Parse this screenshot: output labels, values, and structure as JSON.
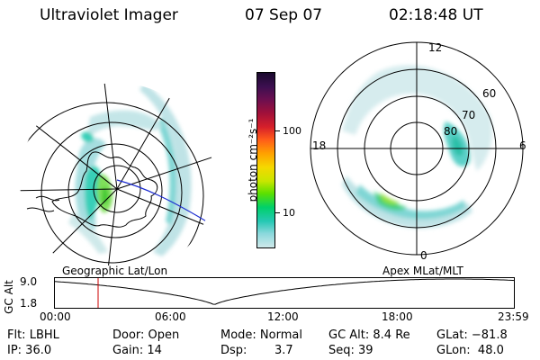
{
  "header": {
    "title": "Ultraviolet Imager",
    "date": "07 Sep 07",
    "time": "02:18:48 UT"
  },
  "left_panel": {
    "caption": "Geographic Lat/Lon"
  },
  "right_panel": {
    "caption": "Apex MLat/MLT",
    "mlt_labels": {
      "top": "12",
      "bottom": "0",
      "left": "18",
      "right": "6"
    },
    "lat_labels": [
      "60",
      "70",
      "80"
    ]
  },
  "colorbar": {
    "unit_label": "photon cm⁻²s⁻¹",
    "tick_labels": [
      "100",
      "10"
    ],
    "colors": [
      "#1a0a2e",
      "#3d0f50",
      "#6a0f50",
      "#a0103a",
      "#d61f2a",
      "#ff5a1a",
      "#ffa000",
      "#f5d800",
      "#c8e600",
      "#5ce000",
      "#00d06a",
      "#26c8b4",
      "#8ad8dc",
      "#cfe9ea"
    ]
  },
  "timeline": {
    "ylabel": "GC Alt",
    "y_ticks": [
      "9.0",
      "1.8"
    ],
    "x_ticks": [
      "00:00",
      "06:00",
      "12:00",
      "18:00",
      "23:59"
    ],
    "cursor_color": "#cc0000",
    "trace_color": "#000000"
  },
  "footer": {
    "flt": "Flt: LBHL",
    "ip": "IP: 36.0",
    "door": "Door: Open",
    "gain": "Gain: 14",
    "mode": "Mode: Normal",
    "dsp_label": "Dsp:",
    "dsp_value": "3.7",
    "gc_alt": "GC Alt: 8.4 Re",
    "seq": "Seq: 39",
    "glat": "GLat: −81.8",
    "glon": "GLon:  48.0"
  }
}
